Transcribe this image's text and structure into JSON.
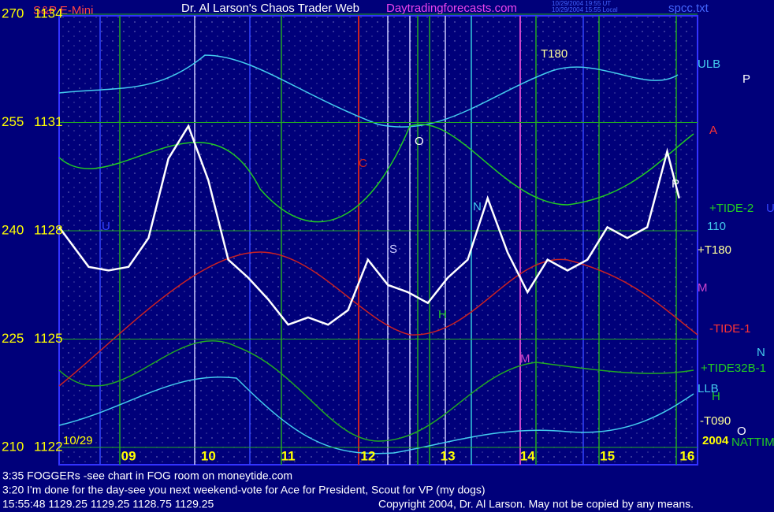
{
  "chart_data": {
    "type": "line",
    "title": "Dr. Al Larson's Chaos Trader Web",
    "subtitle": "Daytradingforecasts.com",
    "instrument": "S&P E-Mini",
    "file": "spcc.txt",
    "timestamp": [
      "10/29/2004 19:55 UT",
      "10/29/2004 15:55 Local"
    ],
    "date": "10/29",
    "year": "2004",
    "x": [
      8.13,
      8.5,
      8.75,
      9.0,
      9.25,
      9.5,
      9.75,
      10.0,
      10.25,
      10.5,
      10.75,
      11.0,
      11.25,
      11.5,
      11.75,
      12.0,
      12.25,
      12.5,
      12.75,
      13.0,
      13.25,
      13.5,
      13.75,
      14.0,
      14.25,
      14.5,
      14.75,
      15.0,
      15.25,
      15.5,
      15.75,
      15.9
    ],
    "values": [
      1128.1,
      1127.0,
      1126.9,
      1127.0,
      1127.8,
      1130.0,
      1130.9,
      1129.4,
      1127.2,
      1126.7,
      1126.1,
      1125.4,
      1125.6,
      1125.4,
      1125.8,
      1127.2,
      1126.5,
      1126.3,
      1126.0,
      1126.7,
      1127.2,
      1128.9,
      1127.4,
      1126.3,
      1127.2,
      1126.9,
      1127.2,
      1128.1,
      1127.8,
      1128.1,
      1130.2,
      1128.9
    ],
    "color": "#ffffff",
    "xlim": [
      8.13,
      16.13
    ],
    "xticks": [
      {
        "value": 9,
        "label": "09"
      },
      10,
      11,
      12,
      13,
      14,
      15,
      16
    ],
    "ylim": [
      1122,
      1134
    ],
    "yticks": [
      1134,
      1131,
      1128,
      1125,
      1122
    ],
    "aux_ticks": [
      270,
      255,
      240,
      225,
      210
    ],
    "grid": true,
    "right_labels": [
      "ULB",
      "P",
      "A",
      "+TIDE-2",
      "U",
      "110",
      "+T180",
      "M",
      "-TIDE-1",
      "N",
      "+TIDE32B-1",
      "LLB",
      "H",
      "-T090",
      "O",
      "NATTIM"
    ],
    "annotations": [
      "T180",
      "O",
      "C",
      "S",
      "H",
      "M",
      "N",
      "P",
      "U"
    ],
    "messages": [
      "3:35 FOGGERs -see chart in FOG room on moneytide.com",
      "3:20 I'm done for the day-see you next weekend-vote for Ace for President, Scout for VP (my dogs)"
    ],
    "status": "15:55:48  1129.25 1129.25 1128.75 1129.25",
    "copyright": "Copyright 2004, Dr. Al Larson. May not be copied by any means."
  }
}
